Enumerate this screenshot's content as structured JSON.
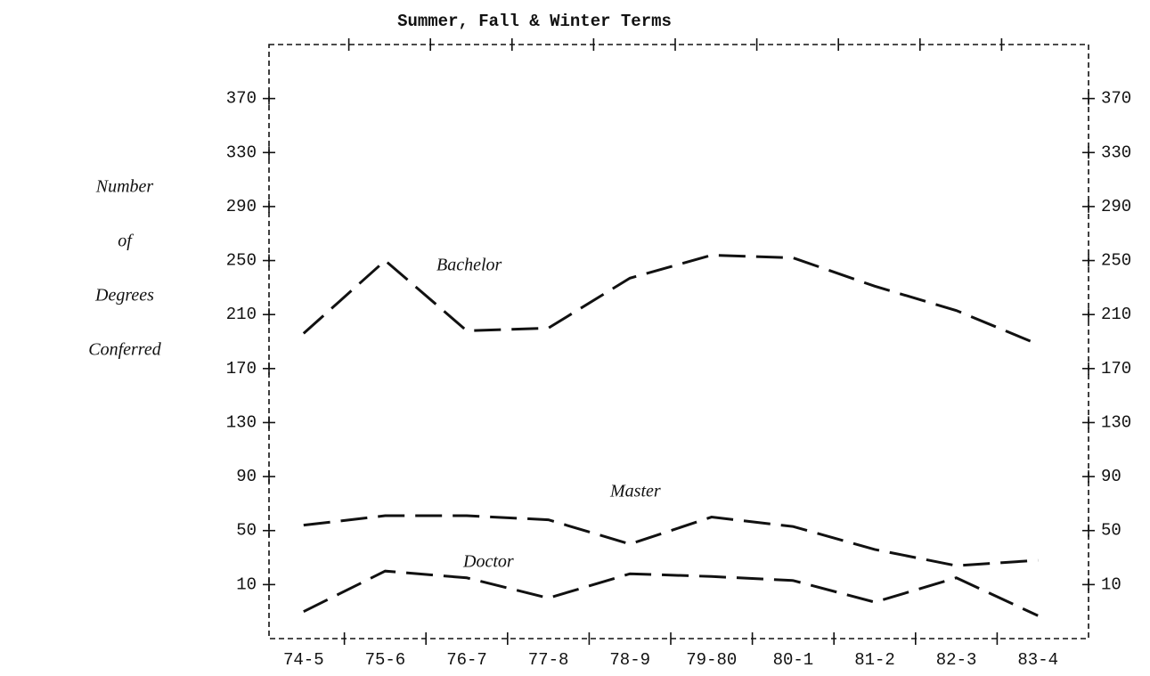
{
  "chart_data": {
    "type": "line",
    "title": "Summer, Fall & Winter Terms",
    "y_label": [
      "Number",
      "of",
      "Degrees",
      "Conferred"
    ],
    "categories": [
      "74-5",
      "75-6",
      "76-7",
      "77-8",
      "78-9",
      "79-80",
      "80-1",
      "81-2",
      "82-3",
      "83-4"
    ],
    "series": [
      {
        "name": "Bachelor",
        "color": "#111111",
        "values": [
          196,
          250,
          198,
          200,
          237,
          254,
          252,
          231,
          213,
          188
        ]
      },
      {
        "name": "Master",
        "color": "#111111",
        "values": [
          54,
          61,
          61,
          58,
          40,
          60,
          53,
          36,
          24,
          28
        ]
      },
      {
        "name": "Doctor",
        "color": "#111111",
        "values": [
          -10,
          20,
          15,
          0,
          18,
          16,
          13,
          -3,
          15,
          -13
        ]
      }
    ],
    "ylim": [
      -30,
      410
    ],
    "yticks": [
      10,
      50,
      90,
      130,
      170,
      210,
      250,
      290,
      330,
      370
    ],
    "y2lim": [
      -30,
      410
    ],
    "y2ticks": [
      10,
      50,
      90,
      130,
      170,
      210,
      250,
      290,
      330,
      370
    ]
  }
}
